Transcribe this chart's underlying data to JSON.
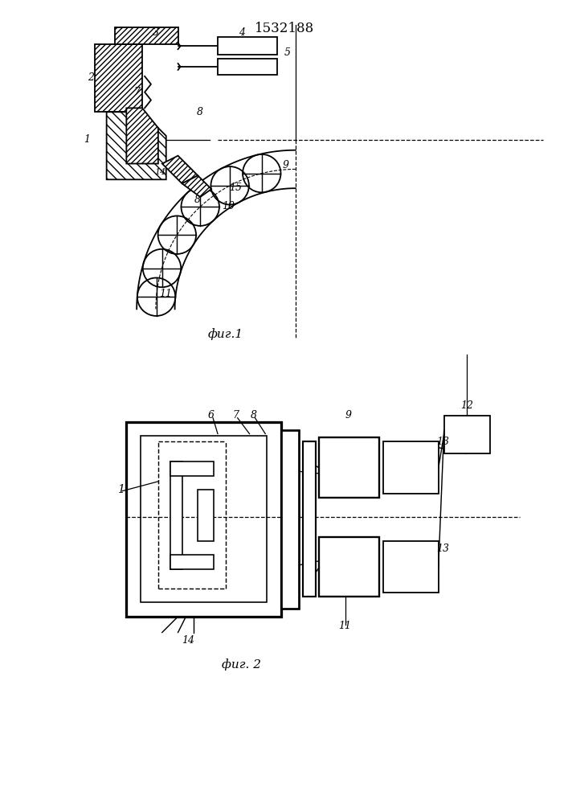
{
  "title": "1532188",
  "fig1_label": "фиг.1",
  "fig2_label": "фиг. 2",
  "bg_color": "#ffffff",
  "line_color": "#000000"
}
